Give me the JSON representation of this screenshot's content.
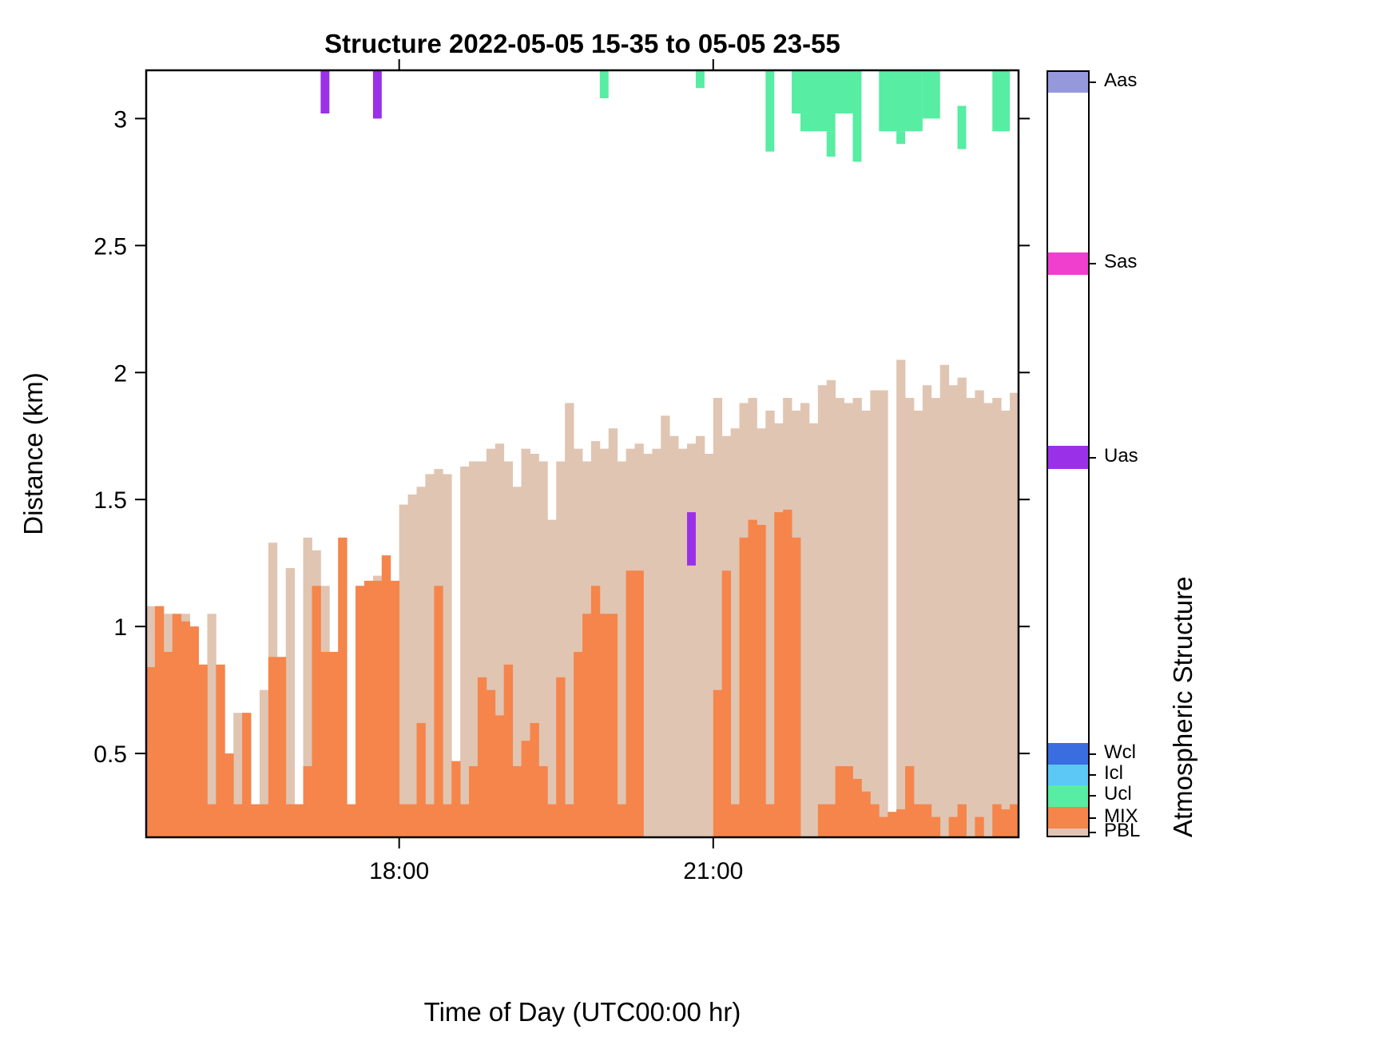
{
  "title": "Structure 2022-05-05 15-35 to 05-05 23-55",
  "axes": {
    "ylabel": "Distance (km)",
    "xlabel": "Time of Day (UTC00:00 hr)",
    "yticks": [
      3,
      2.5,
      2,
      1.5,
      1,
      0.5
    ],
    "ytick_labels": [
      "3",
      "2.5",
      "2",
      "1.5",
      "1",
      "0.5"
    ],
    "xtick_labels": [
      "18:00",
      "21:00"
    ],
    "xtick_minutes": [
      145,
      325
    ],
    "x_total_minutes": 500,
    "ylim": [
      0.17,
      3.19
    ]
  },
  "colorbar": {
    "title": "Atmospheric Structure",
    "entries": [
      {
        "label": "Aas",
        "color": "#9598DB",
        "frac0": 0.0,
        "frac1": 0.027
      },
      {
        "label": "Sas",
        "color": "#F03ECF",
        "frac0": 0.236,
        "frac1": 0.266
      },
      {
        "label": "Uas",
        "color": "#9B30E9",
        "frac0": 0.49,
        "frac1": 0.52
      },
      {
        "label": "Wcl",
        "color": "#3A6EE0",
        "frac0": 0.879,
        "frac1": 0.907
      },
      {
        "label": "Icl",
        "color": "#5BC8F5",
        "frac0": 0.907,
        "frac1": 0.934
      },
      {
        "label": "Ucl",
        "color": "#57EDA2",
        "frac0": 0.934,
        "frac1": 0.962
      },
      {
        "label": "MIX",
        "color": "#F5854B",
        "frac0": 0.962,
        "frac1": 0.991
      },
      {
        "label": "PBL",
        "color": "#E0C5B2",
        "frac0": 0.991,
        "frac1": 1.0
      }
    ]
  },
  "chart_data": {
    "type": "bar",
    "title": "Structure 2022-05-05 15-35 to 05-05 23-55",
    "xlabel": "Time of Day (UTC00:00 hr)",
    "ylabel": "Distance (km)",
    "time_start": "15:35",
    "time_end": "23:55",
    "bar_minutes": 5,
    "n_bars": 100,
    "ylim": [
      0.17,
      3.19
    ],
    "series": [
      {
        "name": "PBL",
        "color": "#E0C5B2",
        "values": [
          1.08,
          1.08,
          1.05,
          1.04,
          1.05,
          1.0,
          0.85,
          1.05,
          0.85,
          0.5,
          0.66,
          0.66,
          0.3,
          0.75,
          1.33,
          0.88,
          1.23,
          0.3,
          1.35,
          1.3,
          1.16,
          0.9,
          1.35,
          0.3,
          1.16,
          1.18,
          1.2,
          1.28,
          1.18,
          1.48,
          1.52,
          1.55,
          1.6,
          1.62,
          1.6,
          0.47,
          1.63,
          1.65,
          1.65,
          1.7,
          1.72,
          1.65,
          1.55,
          1.7,
          1.68,
          1.65,
          1.42,
          1.65,
          1.88,
          1.7,
          1.65,
          1.73,
          1.7,
          1.78,
          1.65,
          1.7,
          1.72,
          1.68,
          1.7,
          1.83,
          1.75,
          1.7,
          1.72,
          1.75,
          1.68,
          1.9,
          1.75,
          1.78,
          1.88,
          1.9,
          1.78,
          1.85,
          1.8,
          1.9,
          1.85,
          1.88,
          1.8,
          1.95,
          1.97,
          1.9,
          1.88,
          1.9,
          1.85,
          1.93,
          1.93,
          0.27,
          2.05,
          1.9,
          1.85,
          1.95,
          1.9,
          2.03,
          1.95,
          1.98,
          1.9,
          1.93,
          1.88,
          1.9,
          1.85,
          1.92
        ]
      },
      {
        "name": "MIX",
        "color": "#F5854B",
        "values": [
          0.84,
          1.08,
          0.9,
          1.05,
          1.02,
          1.0,
          0.85,
          0.3,
          0.85,
          0.5,
          0.3,
          0.66,
          0.3,
          0.3,
          0.88,
          0.88,
          0.3,
          0.3,
          0.45,
          1.16,
          0.9,
          0.9,
          1.35,
          0.3,
          1.16,
          1.18,
          1.18,
          1.28,
          1.18,
          0.3,
          0.3,
          0.62,
          0.3,
          1.16,
          0.3,
          0.47,
          0.3,
          0.45,
          0.8,
          0.75,
          0.65,
          0.85,
          0.45,
          0.55,
          0.62,
          0.45,
          0.3,
          0.8,
          0.3,
          0.9,
          1.05,
          1.16,
          1.05,
          1.05,
          0.3,
          1.22,
          1.22,
          0,
          0,
          0,
          0,
          0,
          0,
          0,
          0,
          0.75,
          1.22,
          0.3,
          1.35,
          1.42,
          1.4,
          0.3,
          1.45,
          1.46,
          1.35,
          0,
          0,
          0.3,
          0.3,
          0.45,
          0.45,
          0.4,
          0.35,
          0.3,
          0.25,
          0.27,
          0.28,
          0.45,
          0.3,
          0.3,
          0.25,
          0,
          0.25,
          0.3,
          0,
          0.25,
          0,
          0.3,
          0.28,
          0.3
        ]
      }
    ],
    "patches": [
      {
        "name": "Ucl",
        "color": "#57EDA2",
        "rects": [
          [
            52,
            53,
            3.08,
            3.19
          ],
          [
            63,
            64,
            3.12,
            3.19
          ],
          [
            71,
            72,
            2.87,
            3.19
          ],
          [
            74,
            81,
            3.02,
            3.19
          ],
          [
            75,
            79,
            2.95,
            3.02
          ],
          [
            78,
            79,
            2.85,
            2.95
          ],
          [
            80,
            82,
            3.05,
            3.19
          ],
          [
            81,
            82,
            2.83,
            3.05
          ],
          [
            84,
            89,
            2.95,
            3.19
          ],
          [
            86,
            87,
            2.9,
            2.95
          ],
          [
            89,
            91,
            3.0,
            3.19
          ],
          [
            93,
            94,
            2.88,
            3.05
          ],
          [
            97,
            99,
            2.95,
            3.19
          ]
        ]
      },
      {
        "name": "Uas",
        "color": "#9B30E9",
        "rects": [
          [
            20,
            21,
            3.02,
            3.19
          ],
          [
            26,
            27,
            3.0,
            3.19
          ],
          [
            62,
            63,
            1.24,
            1.45
          ]
        ]
      }
    ]
  }
}
